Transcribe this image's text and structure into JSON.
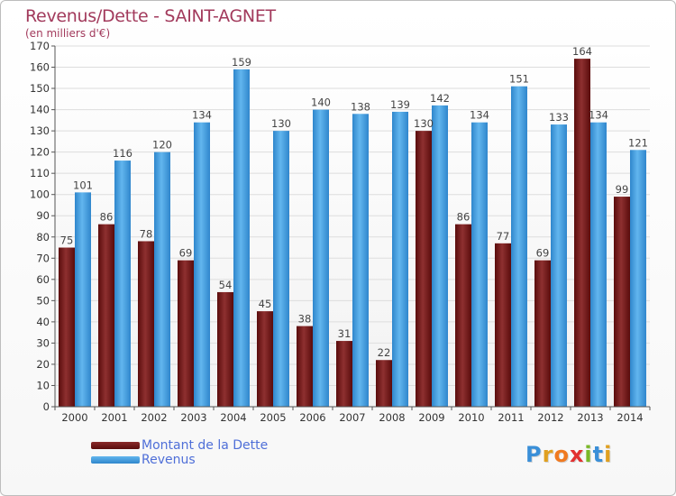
{
  "header": {
    "title": "Revenus/Dette - SAINT-AGNET",
    "subtitle": "(en milliers d'€)"
  },
  "colors": {
    "dette": "#8b2a2a",
    "revenus": "#4fa6e3",
    "title": "#a23a5c",
    "legend_text": "#4f6fd8"
  },
  "legend": {
    "position": "bottom-left",
    "items": [
      {
        "label": "Montant de la Dette",
        "color": "#6b1515"
      },
      {
        "label": "Revenus",
        "color": "#4fa6e3"
      }
    ]
  },
  "logo": {
    "text": "Proxiti",
    "letters": [
      {
        "ch": "P",
        "color": "#3a8fd8"
      },
      {
        "ch": "r",
        "color": "#e0a020"
      },
      {
        "ch": "o",
        "color": "#f07a20"
      },
      {
        "ch": "x",
        "color": "#e23030"
      },
      {
        "ch": "i",
        "color": "#7ab828"
      },
      {
        "ch": "t",
        "color": "#3a8fd8"
      },
      {
        "ch": "i",
        "color": "#e0a020"
      }
    ]
  },
  "chart_data": {
    "type": "bar",
    "title": "Revenus/Dette - SAINT-AGNET",
    "subtitle": "(en milliers d'€)",
    "xlabel": "",
    "ylabel": "",
    "ylim": [
      0,
      170
    ],
    "yticks": [
      0,
      10,
      20,
      30,
      40,
      50,
      60,
      70,
      80,
      90,
      100,
      110,
      120,
      130,
      140,
      150,
      160,
      170
    ],
    "grid": true,
    "categories": [
      "2000",
      "2001",
      "2002",
      "2003",
      "2004",
      "2005",
      "2006",
      "2007",
      "2008",
      "2009",
      "2010",
      "2011",
      "2012",
      "2013",
      "2014"
    ],
    "series": [
      {
        "name": "Montant de la Dette",
        "values": [
          75,
          86,
          78,
          69,
          54,
          45,
          38,
          31,
          22,
          130,
          86,
          77,
          69,
          164,
          99
        ]
      },
      {
        "name": "Revenus",
        "values": [
          101,
          116,
          120,
          134,
          159,
          130,
          140,
          138,
          139,
          142,
          134,
          151,
          133,
          134,
          121
        ]
      }
    ]
  }
}
